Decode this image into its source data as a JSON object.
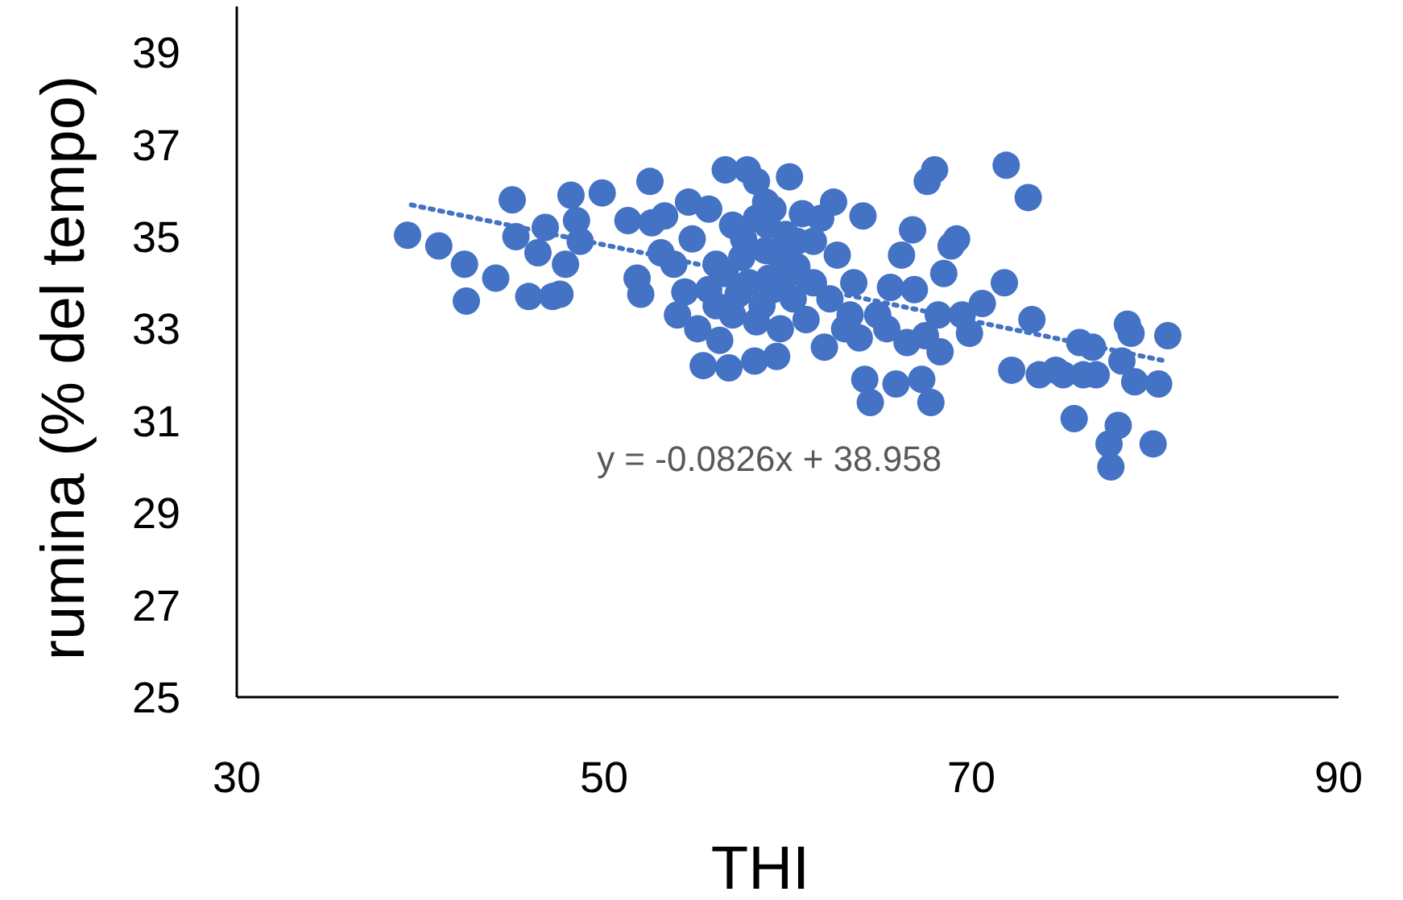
{
  "chart_data": {
    "type": "scatter",
    "xlabel": "THI",
    "ylabel": "rumina (% del tempo)",
    "xlim": [
      30,
      90
    ],
    "ylim": [
      25,
      40
    ],
    "xticks": [
      30,
      50,
      70,
      90
    ],
    "yticks": [
      25,
      27,
      29,
      31,
      33,
      35,
      37,
      39
    ],
    "grid": false,
    "marker": "circle",
    "annotations": [
      "y = -0.0826x + 38.958"
    ],
    "series": [
      {
        "color": "#4472c4",
        "x": [
          39.3,
          41.0,
          42.4,
          42.5,
          44.1,
          45.0,
          45.2,
          45.9,
          46.4,
          46.8,
          47.2,
          47.6,
          47.9,
          48.2,
          48.5,
          48.7,
          49.9,
          51.3,
          51.8,
          52.0,
          52.5,
          52.6,
          53.1,
          53.3,
          53.8,
          54.0,
          54.4,
          54.6,
          54.8,
          55.1,
          55.4,
          55.7,
          56.1,
          56.3,
          56.6,
          56.8,
          57.0,
          57.3,
          57.6,
          57.8,
          58.2,
          58.3,
          58.6,
          58.9,
          59.0,
          59.2,
          59.4,
          59.6,
          59.9,
          60.1,
          60.3,
          60.5,
          60.8,
          61.0,
          61.4,
          61.8,
          62.0,
          62.3,
          62.5,
          62.7,
          63.1,
          63.4,
          63.6,
          63.9,
          64.1,
          64.2,
          64.5,
          64.9,
          65.4,
          65.6,
          65.9,
          66.2,
          66.5,
          66.8,
          66.9,
          67.3,
          67.5,
          67.6,
          67.8,
          68.0,
          68.2,
          68.3,
          68.5,
          68.9,
          69.2,
          69.5,
          69.9,
          70.6,
          71.8,
          71.9,
          72.2,
          73.1,
          73.3,
          73.7,
          74.6,
          75.0,
          75.6,
          75.9,
          76.1,
          76.6,
          76.8,
          77.5,
          77.6,
          78.0,
          78.2,
          78.5,
          78.7,
          78.9,
          79.9,
          80.2,
          80.7,
          55.7,
          56.1,
          56.6,
          57.0,
          57.5,
          57.9,
          58.3,
          58.8,
          59.2,
          59.6,
          60.1,
          58.8,
          60.5,
          61.4,
          58.3
        ],
        "values": [
          35.03,
          34.8,
          34.4,
          33.6,
          34.1,
          35.8,
          35.0,
          33.7,
          34.65,
          35.2,
          33.7,
          33.75,
          34.4,
          35.9,
          35.35,
          34.9,
          35.95,
          35.35,
          34.1,
          33.75,
          36.2,
          35.3,
          34.65,
          35.45,
          34.4,
          33.3,
          33.8,
          35.75,
          34.95,
          33.0,
          32.2,
          35.6,
          34.4,
          32.75,
          36.45,
          32.15,
          35.25,
          33.75,
          34.95,
          36.45,
          32.3,
          36.2,
          33.5,
          35.25,
          34.1,
          35.6,
          32.4,
          34.55,
          35.05,
          36.3,
          33.65,
          34.35,
          35.5,
          33.2,
          34.0,
          35.4,
          32.6,
          33.65,
          35.75,
          34.6,
          33.0,
          33.3,
          34.0,
          32.8,
          35.45,
          31.9,
          31.4,
          33.3,
          33.0,
          33.9,
          31.8,
          34.6,
          32.7,
          35.15,
          33.85,
          31.9,
          32.85,
          36.2,
          31.4,
          36.45,
          33.3,
          32.5,
          34.2,
          34.8,
          34.95,
          33.3,
          32.9,
          33.55,
          34.0,
          36.55,
          32.1,
          35.85,
          33.2,
          32.0,
          32.1,
          32.0,
          31.05,
          32.7,
          32.0,
          32.6,
          32.0,
          30.5,
          30.0,
          30.9,
          32.3,
          33.1,
          32.9,
          31.85,
          30.5,
          31.8,
          32.85,
          33.85,
          33.5,
          34.2,
          33.3,
          34.55,
          34.0,
          33.15,
          34.7,
          33.85,
          33.0,
          34.2,
          35.75,
          34.9,
          34.9,
          35.4
        ]
      },
      {
        "type": "line",
        "color": "#4472c4",
        "line_style": "dotted",
        "marker": "none",
        "x": [
          39.5,
          80.7
        ],
        "values": [
          35.69,
          32.29
        ]
      }
    ]
  }
}
